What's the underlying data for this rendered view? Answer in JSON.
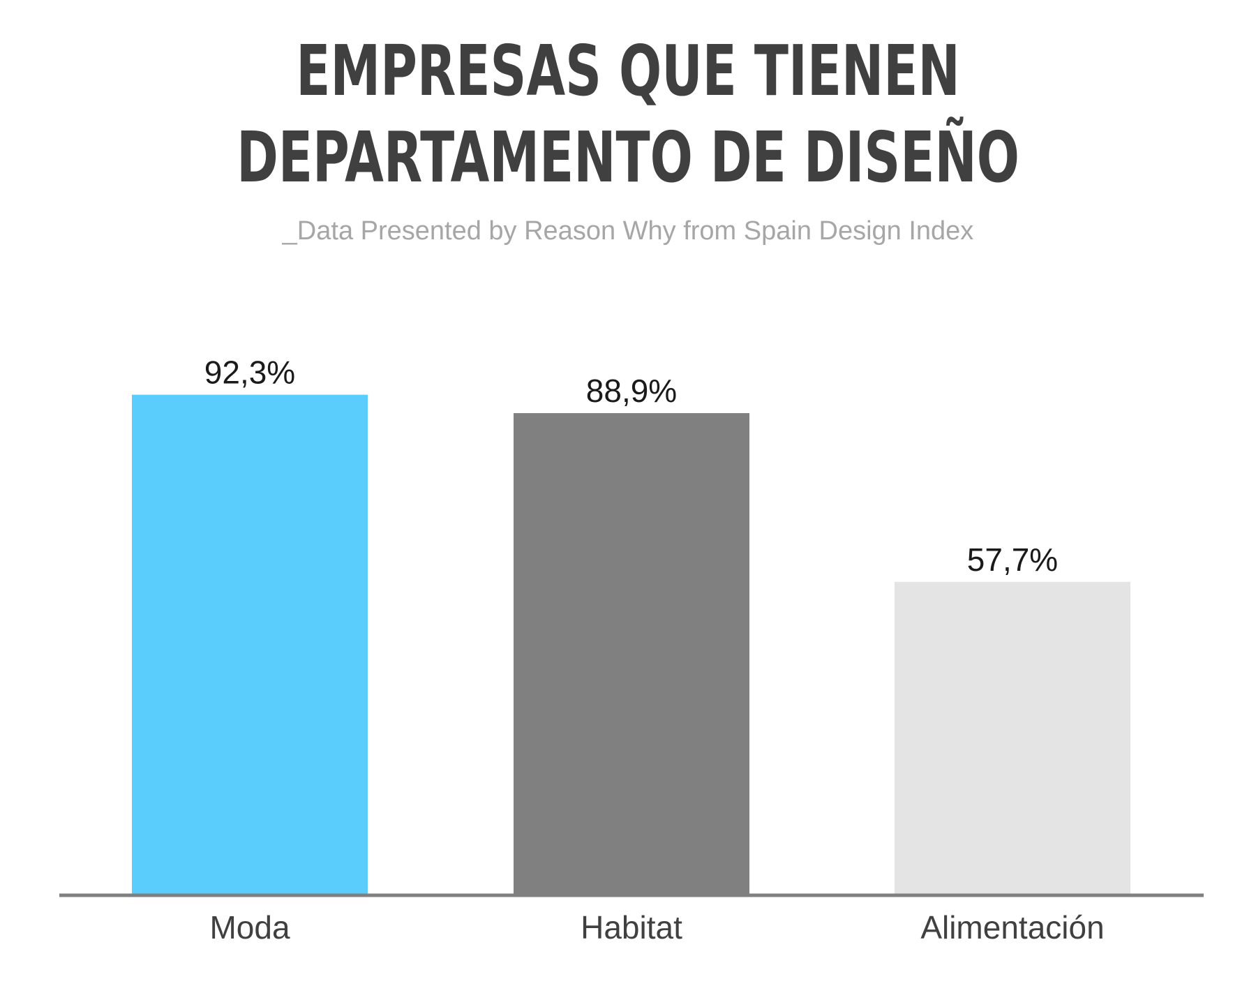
{
  "header": {
    "title_line1": "EMPRESAS QUE TIENEN",
    "title_line2": "DEPARTAMENTO DE DISEÑO",
    "subtitle": "_Data Presented by Reason Why from Spain Design Index"
  },
  "chart_data": {
    "type": "bar",
    "title": "EMPRESAS QUE TIENEN DEPARTAMENTO DE DISEÑO",
    "subtitle": "_Data Presented by Reason Why from Spain Design Index",
    "categories": [
      "Moda",
      "Habitat",
      "Alimentación"
    ],
    "values": [
      92.3,
      88.9,
      57.7
    ],
    "value_labels": [
      "92,3%",
      "88,9%",
      "57,7%"
    ],
    "bar_colors": [
      "#5bcdfc",
      "#808080",
      "#e4e4e4"
    ],
    "xlabel": "",
    "ylabel": "",
    "ylim": [
      0,
      100
    ],
    "grid": false,
    "legend": "none"
  }
}
